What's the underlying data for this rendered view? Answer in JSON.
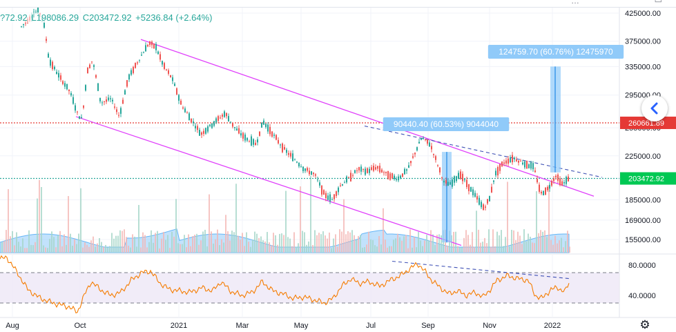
{
  "legend": {
    "open": "?72.92",
    "low": "L198086.29",
    "close": "C203472.92",
    "change": "+5236.84 (+2.64%)"
  },
  "chart_data": {
    "type": "candlestick",
    "price_axis": {
      "ticks": [
        425000,
        375000,
        335000,
        295000,
        255000,
        225000,
        185000,
        169000,
        155000
      ],
      "tick_labels": [
        "425000.00",
        "375000.00",
        "335000.00",
        "295000.00",
        "255000.00",
        "225000.00",
        "185000.00",
        "169000.00",
        "155000.00"
      ],
      "scale": "log"
    },
    "x_axis": {
      "tick_labels": [
        "Aug",
        "Oct",
        "2021",
        "Mar",
        "May",
        "Jul",
        "Sep",
        "Nov",
        "2022"
      ]
    },
    "horizontal_lines": [
      {
        "label": "260661.89",
        "value": 260661.89,
        "color": "#e53935",
        "style": "dotted"
      },
      {
        "label": "203472.92",
        "value": 203472.92,
        "color": "#26a69a",
        "style": "dotted"
      }
    ],
    "measure_labels": [
      {
        "text": "90440.40 (60.53%) 9044040"
      },
      {
        "text": "124759.70 (60.76%) 12475970"
      }
    ],
    "channel_color": "#e040fb",
    "rsi": {
      "tick_labels": [
        "80.0000",
        "40.0000"
      ],
      "upper": 70,
      "lower": 30,
      "line_color": "#f57c00"
    },
    "colors": {
      "up": "#26a69a",
      "down": "#ef5350",
      "volume": "#90caf9"
    }
  },
  "icons": {
    "nav": "chevron-left-icon",
    "settings": "gear-icon"
  }
}
